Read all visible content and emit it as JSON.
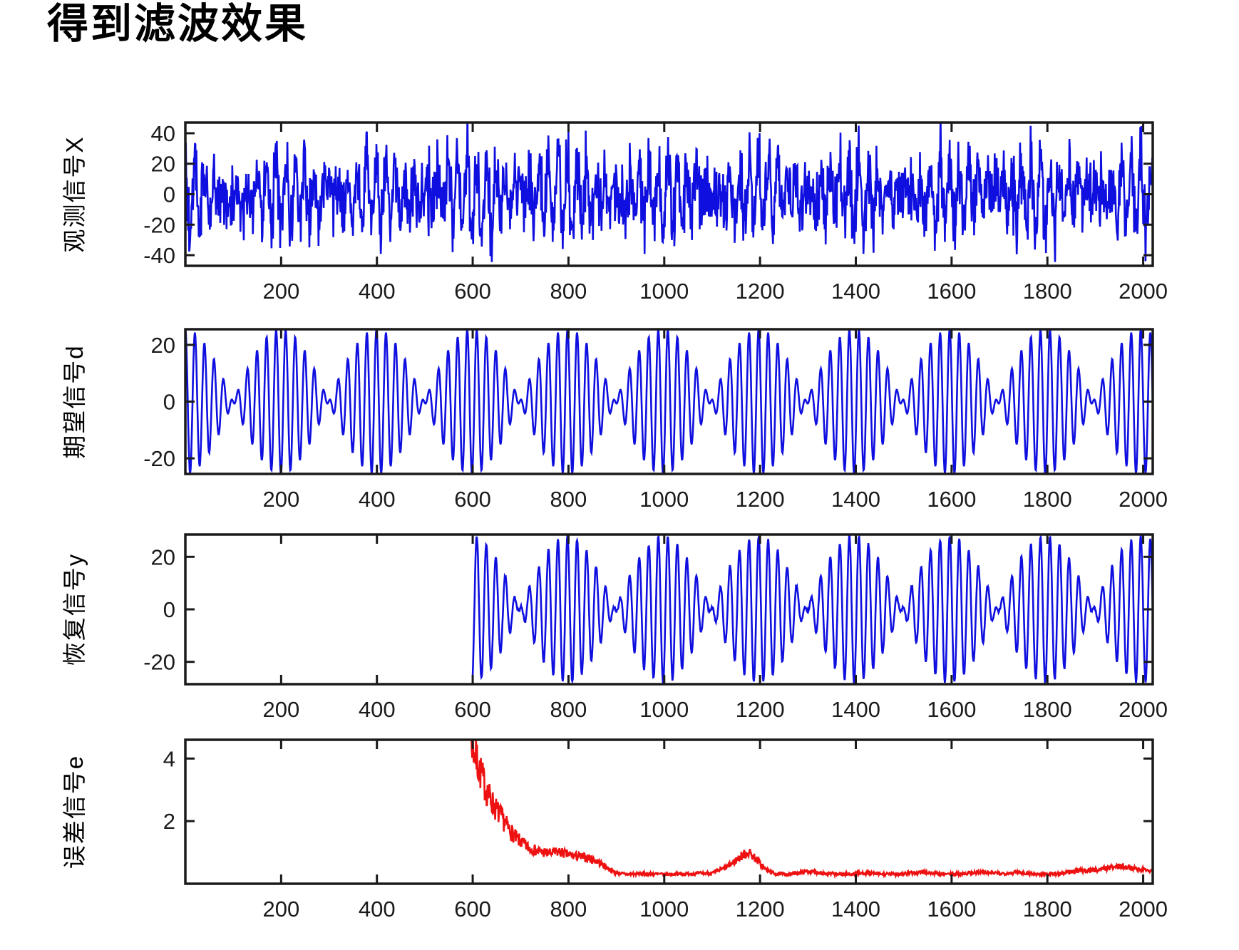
{
  "page_title": "得到滤波效果",
  "colors": {
    "signal_blue": "#0f0fe0",
    "error_red": "#ee1111",
    "axis": "#1a1a1a",
    "tick_text": "#1b1b1b",
    "background": "#ffffff"
  },
  "chart_data": [
    {
      "id": "observed-signal",
      "type": "line",
      "title": "",
      "ylabel": "观测信号X",
      "xlabel": "",
      "line_color": "#0f0fe0",
      "xlim": [
        0,
        2020
      ],
      "ylim": [
        -47,
        47
      ],
      "xticks": [
        200,
        400,
        600,
        800,
        1000,
        1200,
        1400,
        1600,
        1800,
        2000
      ],
      "yticks": [
        40,
        20,
        0,
        -20,
        -40
      ],
      "grid": false,
      "legend": null,
      "signal": {
        "kind": "am_plus_noise",
        "description": "noisy observed signal: AM component buried in broadband noise, peaks clipped near ±47",
        "carrier_periods": [
          19,
          21
        ],
        "carrier_phase": 1.5708,
        "carrier_amp": 11.5,
        "noise_sigma": 11,
        "start": 0,
        "seed": 101
      }
    },
    {
      "id": "desired-signal",
      "type": "line",
      "title": "",
      "ylabel": "期望信号d",
      "xlabel": "",
      "line_color": "#0f0fe0",
      "xlim": [
        0,
        2020
      ],
      "ylim": [
        -25.5,
        25.5
      ],
      "xticks": [
        200,
        400,
        600,
        800,
        1000,
        1200,
        1400,
        1600,
        1800,
        2000
      ],
      "yticks": [
        20,
        0,
        -20
      ],
      "grid": false,
      "legend": null,
      "signal": {
        "kind": "am_plus_noise",
        "description": "clean desired signal: two-tone beat (envelope period ≈200 samples, carrier ≈20 samples), amplitude ≈ ±25",
        "carrier_periods": [
          19,
          21
        ],
        "carrier_phase": 1.5708,
        "carrier_amp": 12.8,
        "noise_sigma": 0,
        "start": 0,
        "seed": 5
      }
    },
    {
      "id": "recovered-signal",
      "type": "line",
      "title": "",
      "ylabel": "恢复信号y",
      "xlabel": "",
      "line_color": "#0f0fe0",
      "xlim": [
        0,
        2020
      ],
      "ylim": [
        -28.5,
        28.5
      ],
      "xticks": [
        200,
        400,
        600,
        800,
        1000,
        1200,
        1400,
        1600,
        1800,
        2000
      ],
      "yticks": [
        20,
        0,
        -20
      ],
      "grid": false,
      "legend": null,
      "signal": {
        "kind": "am_plus_noise",
        "description": "recovered (filter output) signal: blank before n=600, then same AM beat waveform, amplitude ≈ ±28",
        "carrier_periods": [
          19,
          21
        ],
        "carrier_phase": 1.5708,
        "carrier_amp": 14.0,
        "noise_sigma": 0.3,
        "start": 600,
        "seed": 33
      }
    },
    {
      "id": "error-signal",
      "type": "line",
      "title": "",
      "ylabel": "误差信号e",
      "xlabel": "",
      "line_color": "#ee1111",
      "xlim": [
        0,
        2020
      ],
      "ylim": [
        0,
        4.6
      ],
      "xticks": [
        200,
        400,
        600,
        800,
        1000,
        1200,
        1400,
        1600,
        1800,
        2000
      ],
      "yticks": [
        4,
        2
      ],
      "grid": false,
      "legend": null,
      "signal": {
        "kind": "noisy_envelope",
        "description": "error magnitude: enters above scale at n≈590, exponential-like decay to ≈0.3 baseline by n≈900, bump to ≈1.0 near n≈1170, small rise ≈0.55 near n≈1960",
        "start": 588,
        "seed": 7,
        "noise_frac": 0.34,
        "envelope": [
          [
            588,
            6.0
          ],
          [
            600,
            4.4
          ],
          [
            615,
            3.6
          ],
          [
            630,
            2.9
          ],
          [
            645,
            2.45
          ],
          [
            660,
            2.1
          ],
          [
            675,
            1.75
          ],
          [
            690,
            1.45
          ],
          [
            705,
            1.25
          ],
          [
            720,
            1.1
          ],
          [
            740,
            1.0
          ],
          [
            760,
            0.95
          ],
          [
            780,
            1.0
          ],
          [
            800,
            0.9
          ],
          [
            820,
            0.85
          ],
          [
            840,
            0.8
          ],
          [
            860,
            0.7
          ],
          [
            880,
            0.5
          ],
          [
            895,
            0.35
          ],
          [
            920,
            0.28
          ],
          [
            950,
            0.3
          ],
          [
            1000,
            0.28
          ],
          [
            1050,
            0.3
          ],
          [
            1100,
            0.32
          ],
          [
            1130,
            0.5
          ],
          [
            1160,
            0.85
          ],
          [
            1175,
            1.0
          ],
          [
            1190,
            0.8
          ],
          [
            1210,
            0.45
          ],
          [
            1230,
            0.3
          ],
          [
            1260,
            0.28
          ],
          [
            1300,
            0.38
          ],
          [
            1340,
            0.3
          ],
          [
            1380,
            0.28
          ],
          [
            1420,
            0.32
          ],
          [
            1460,
            0.28
          ],
          [
            1500,
            0.3
          ],
          [
            1540,
            0.35
          ],
          [
            1580,
            0.28
          ],
          [
            1620,
            0.3
          ],
          [
            1660,
            0.35
          ],
          [
            1700,
            0.3
          ],
          [
            1740,
            0.35
          ],
          [
            1780,
            0.28
          ],
          [
            1820,
            0.3
          ],
          [
            1860,
            0.38
          ],
          [
            1900,
            0.42
          ],
          [
            1930,
            0.5
          ],
          [
            1960,
            0.55
          ],
          [
            1985,
            0.45
          ],
          [
            2020,
            0.4
          ]
        ]
      }
    }
  ]
}
